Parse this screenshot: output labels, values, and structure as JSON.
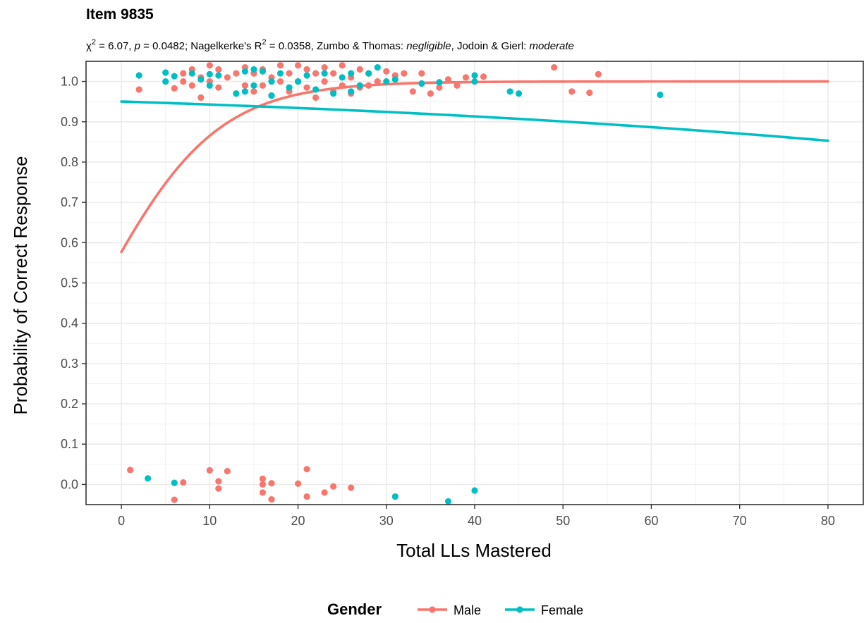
{
  "chart_data": {
    "type": "scatter",
    "title": "Item 9835",
    "subtitle": {
      "chi_symbol": "χ",
      "chi_value": " = 6.07, ",
      "p_label": "p",
      "p_value": " = 0.0482; Nagelkerke's R",
      "r2_value": " = 0.0358, Zumbo & Thomas: ",
      "zt_class": "negligible",
      "jg_prefix": ", Jodoin & Gierl: ",
      "jg_class": "moderate",
      "superscript": "2"
    },
    "xlabel": "Total LLs Mastered",
    "ylabel": "Probability of Correct Response",
    "xlim": [
      -4,
      84
    ],
    "ylim": [
      -0.05,
      1.05
    ],
    "x_ticks": [
      0,
      10,
      20,
      30,
      40,
      50,
      60,
      70,
      80
    ],
    "y_ticks": [
      0.0,
      0.1,
      0.2,
      0.3,
      0.4,
      0.5,
      0.6,
      0.7,
      0.8,
      0.9,
      1.0
    ],
    "x_tick_labels": [
      "0",
      "10",
      "20",
      "30",
      "40",
      "50",
      "60",
      "70",
      "80"
    ],
    "y_tick_labels": [
      "0.0",
      "0.1",
      "0.2",
      "0.3",
      "0.4",
      "0.5",
      "0.6",
      "0.7",
      "0.8",
      "0.9",
      "1.0"
    ],
    "grid": true,
    "legend": {
      "title": "Gender",
      "position": "bottom"
    },
    "series": [
      {
        "name": "Male",
        "color": "#F8766D",
        "curve": {
          "type": "logistic",
          "intercept": 0.31,
          "slope": 0.155,
          "x_range": [
            0,
            80
          ]
        },
        "points": [
          [
            2,
            0.98
          ],
          [
            6,
            0.983
          ],
          [
            7,
            1.0
          ],
          [
            7,
            1.02
          ],
          [
            8,
            0.99
          ],
          [
            8,
            1.03
          ],
          [
            9,
            0.96
          ],
          [
            9,
            1.01
          ],
          [
            10,
            1.04
          ],
          [
            10,
            1.0
          ],
          [
            11,
            1.03
          ],
          [
            11,
            0.985
          ],
          [
            12,
            1.01
          ],
          [
            13,
            1.02
          ],
          [
            13,
            0.97
          ],
          [
            14,
            1.035
          ],
          [
            14,
            0.99
          ],
          [
            15,
            1.02
          ],
          [
            15,
            0.975
          ],
          [
            16,
            1.03
          ],
          [
            16,
            0.99
          ],
          [
            17,
            1.01
          ],
          [
            17,
            0.965
          ],
          [
            18,
            1.04
          ],
          [
            18,
            1.0
          ],
          [
            19,
            1.02
          ],
          [
            19,
            0.975
          ],
          [
            20,
            1.04
          ],
          [
            20,
            1.0
          ],
          [
            21,
            1.03
          ],
          [
            21,
            0.985
          ],
          [
            22,
            1.02
          ],
          [
            22,
            0.96
          ],
          [
            23,
            1.035
          ],
          [
            23,
            1.0
          ],
          [
            24,
            1.02
          ],
          [
            24,
            0.975
          ],
          [
            25,
            1.04
          ],
          [
            25,
            0.99
          ],
          [
            26,
            1.01
          ],
          [
            26,
            0.97
          ],
          [
            27,
            1.03
          ],
          [
            27,
            0.985
          ],
          [
            28,
            1.02
          ],
          [
            28,
            0.99
          ],
          [
            29,
            1.0
          ],
          [
            30,
            1.025
          ],
          [
            31,
            1.015
          ],
          [
            32,
            1.02
          ],
          [
            33,
            0.975
          ],
          [
            34,
            1.02
          ],
          [
            35,
            0.97
          ],
          [
            36,
            0.985
          ],
          [
            37,
            1.005
          ],
          [
            38,
            0.99
          ],
          [
            39,
            1.01
          ],
          [
            41,
            1.012
          ],
          [
            49,
            1.035
          ],
          [
            51,
            0.975
          ],
          [
            53,
            0.972
          ],
          [
            54,
            1.018
          ],
          [
            1,
            0.036
          ],
          [
            6,
            -0.038
          ],
          [
            7,
            0.005
          ],
          [
            10,
            0.035
          ],
          [
            11,
            0.008
          ],
          [
            11,
            -0.01
          ],
          [
            12,
            0.033
          ],
          [
            16,
            0.014
          ],
          [
            16,
            0.0
          ],
          [
            16,
            -0.02
          ],
          [
            17,
            0.003
          ],
          [
            17,
            -0.037
          ],
          [
            20,
            0.002
          ],
          [
            21,
            0.038
          ],
          [
            21,
            -0.03
          ],
          [
            23,
            -0.02
          ],
          [
            24,
            -0.005
          ],
          [
            26,
            -0.008
          ]
        ]
      },
      {
        "name": "Female",
        "color": "#00BFC4",
        "curve": {
          "type": "logistic",
          "intercept": 2.95,
          "slope": -0.0149,
          "x_range": [
            0,
            80
          ]
        },
        "points": [
          [
            2,
            1.015
          ],
          [
            5,
            1.022
          ],
          [
            5,
            1.0
          ],
          [
            6,
            1.013
          ],
          [
            8,
            1.02
          ],
          [
            9,
            1.005
          ],
          [
            10,
            1.018
          ],
          [
            10,
            0.99
          ],
          [
            11,
            1.015
          ],
          [
            13,
            0.97
          ],
          [
            14,
            1.025
          ],
          [
            14,
            0.975
          ],
          [
            15,
            1.03
          ],
          [
            15,
            0.99
          ],
          [
            16,
            1.025
          ],
          [
            17,
            1.0
          ],
          [
            17,
            0.965
          ],
          [
            18,
            1.02
          ],
          [
            19,
            0.985
          ],
          [
            20,
            1.0
          ],
          [
            21,
            1.015
          ],
          [
            22,
            0.98
          ],
          [
            23,
            1.02
          ],
          [
            24,
            0.97
          ],
          [
            25,
            1.01
          ],
          [
            26,
            0.975
          ],
          [
            26,
            1.02
          ],
          [
            27,
            0.99
          ],
          [
            28,
            1.02
          ],
          [
            29,
            1.035
          ],
          [
            30,
            1.0
          ],
          [
            31,
            1.005
          ],
          [
            34,
            0.995
          ],
          [
            36,
            0.998
          ],
          [
            40,
            1.015
          ],
          [
            40,
            1.0
          ],
          [
            44,
            0.975
          ],
          [
            45,
            0.97
          ],
          [
            61,
            0.967
          ],
          [
            3,
            0.015
          ],
          [
            6,
            0.004
          ],
          [
            31,
            -0.03
          ],
          [
            37,
            -0.042
          ],
          [
            40,
            -0.015
          ]
        ]
      }
    ]
  }
}
